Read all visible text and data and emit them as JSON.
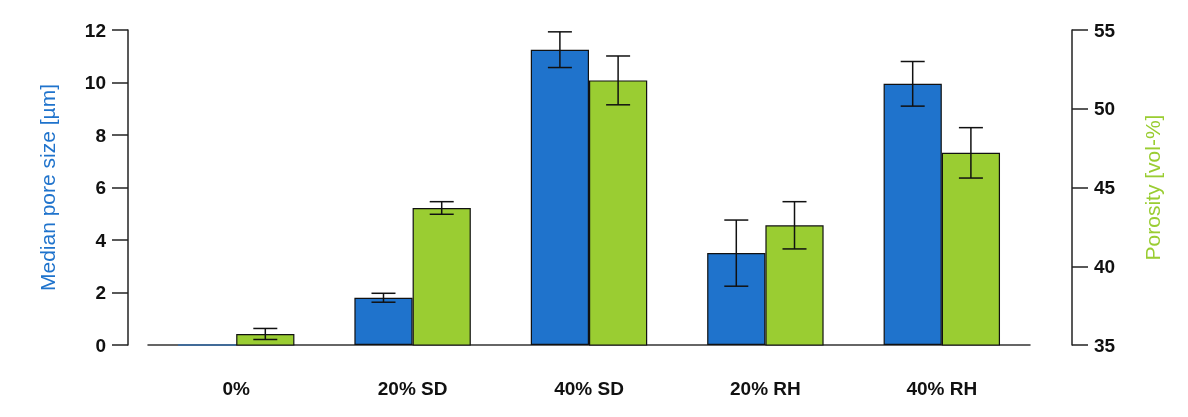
{
  "chart_data": {
    "type": "bar",
    "ylabel": "Median pore size [µm]",
    "y2label": "Porosity [vol-%]",
    "categories": [
      "0%",
      "20% SD",
      "40% SD",
      "20% RH",
      "40% RH"
    ],
    "series": [
      {
        "color": "#1f73cc",
        "values": [
          0,
          1.8,
          11.25,
          3.5,
          9.95
        ],
        "errors": [
          null,
          0.17,
          0.68,
          1.26,
          0.85
        ]
      },
      {
        "color": "#9acd32",
        "axis": "y2",
        "values": [
          35.7,
          43.7,
          51.8,
          42.6,
          47.2
        ],
        "errors": [
          0.35,
          0.4,
          1.55,
          1.5,
          1.6
        ]
      }
    ],
    "ylim": [
      0,
      12
    ],
    "yticks": [
      0,
      2,
      4,
      6,
      8,
      10,
      12
    ],
    "y2lim": [
      35,
      55
    ],
    "y2ticks": [
      35,
      40,
      45,
      50,
      55
    ],
    "grid": false
  }
}
